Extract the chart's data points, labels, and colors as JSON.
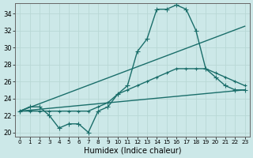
{
  "title": "",
  "xlabel": "Humidex (Indice chaleur)",
  "ylabel": "",
  "bg_color": "#cce8e8",
  "line_color": "#1a6e6a",
  "grid_color": "#b8d8d5",
  "xlim": [
    -0.5,
    23.5
  ],
  "ylim": [
    19.5,
    35.2
  ],
  "xticks": [
    0,
    1,
    2,
    3,
    4,
    5,
    6,
    7,
    8,
    9,
    10,
    11,
    12,
    13,
    14,
    15,
    16,
    17,
    18,
    19,
    20,
    21,
    22,
    23
  ],
  "yticks": [
    20,
    22,
    24,
    26,
    28,
    30,
    32,
    34
  ],
  "series": [
    {
      "x": [
        0,
        1,
        2,
        3,
        4,
        5,
        6,
        7,
        8,
        9,
        10,
        11,
        12,
        13,
        14,
        15,
        16,
        17,
        18,
        19,
        20,
        21,
        22,
        23
      ],
      "y": [
        22.5,
        23.0,
        23.0,
        22.0,
        20.5,
        21.0,
        21.0,
        20.0,
        22.5,
        23.0,
        24.5,
        25.5,
        29.5,
        31.0,
        34.5,
        34.5,
        35.0,
        34.5,
        32.0,
        27.5,
        26.5,
        25.5,
        25.0,
        25.0
      ],
      "marker": "+",
      "markersize": 4,
      "lw": 1.0,
      "zorder": 3
    },
    {
      "x": [
        0,
        23
      ],
      "y": [
        22.5,
        32.5
      ],
      "marker": null,
      "markersize": 0,
      "lw": 1.0,
      "zorder": 2
    },
    {
      "x": [
        0,
        23
      ],
      "y": [
        22.5,
        25.0
      ],
      "marker": null,
      "markersize": 0,
      "lw": 1.0,
      "zorder": 2
    },
    {
      "x": [
        0,
        1,
        2,
        3,
        4,
        5,
        6,
        7,
        8,
        9,
        10,
        11,
        12,
        13,
        14,
        15,
        16,
        17,
        18,
        19,
        20,
        21,
        22,
        23
      ],
      "y": [
        22.5,
        22.5,
        22.5,
        22.5,
        22.5,
        22.5,
        22.5,
        22.5,
        23.0,
        23.5,
        24.5,
        25.0,
        25.5,
        26.0,
        26.5,
        27.0,
        27.5,
        27.5,
        27.5,
        27.5,
        27.0,
        26.5,
        26.0,
        25.5
      ],
      "marker": "+",
      "markersize": 3,
      "lw": 1.0,
      "zorder": 3
    }
  ]
}
